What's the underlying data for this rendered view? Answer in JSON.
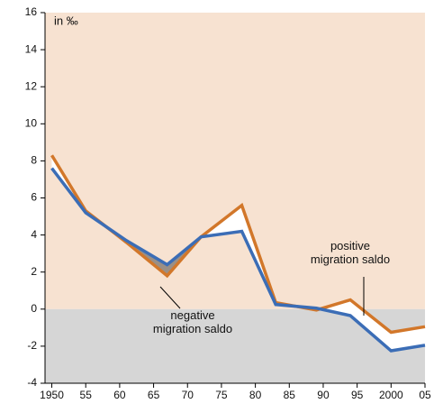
{
  "chart_data": {
    "type": "line",
    "annotations": [
      "in ‰",
      "positive\nmigration saldo",
      "negative\nmigration saldo"
    ],
    "x": [
      1950,
      1955,
      1961,
      1967,
      1972,
      1978,
      1983,
      1989,
      1994,
      2000,
      2005
    ],
    "series": [
      {
        "color": "#d2772a",
        "values": [
          8.3,
          5.3,
          3.6,
          1.8,
          3.9,
          5.6,
          0.35,
          -0.05,
          0.5,
          -1.25,
          -0.95
        ]
      },
      {
        "color": "#3b6db6",
        "values": [
          7.6,
          5.2,
          3.7,
          2.4,
          3.9,
          4.2,
          0.25,
          0.05,
          -0.35,
          -2.25,
          -1.95
        ]
      }
    ],
    "xlim": [
      1949,
      2005
    ],
    "xticks": [
      {
        "value": 1950,
        "label": "1950"
      },
      {
        "value": 1955,
        "label": "55"
      },
      {
        "value": 1960,
        "label": "60"
      },
      {
        "value": 1965,
        "label": "65"
      },
      {
        "value": 1970,
        "label": "70"
      },
      {
        "value": 1975,
        "label": "75"
      },
      {
        "value": 1980,
        "label": "80"
      },
      {
        "value": 1985,
        "label": "85"
      },
      {
        "value": 1990,
        "label": "90"
      },
      {
        "value": 1995,
        "label": "95"
      },
      {
        "value": 2000,
        "label": "2000"
      },
      {
        "value": 2005,
        "label": "05"
      }
    ],
    "ylim": [
      -4,
      16
    ],
    "yticks": [
      -4,
      -2,
      0,
      2,
      4,
      6,
      8,
      10,
      12,
      14,
      16
    ]
  }
}
